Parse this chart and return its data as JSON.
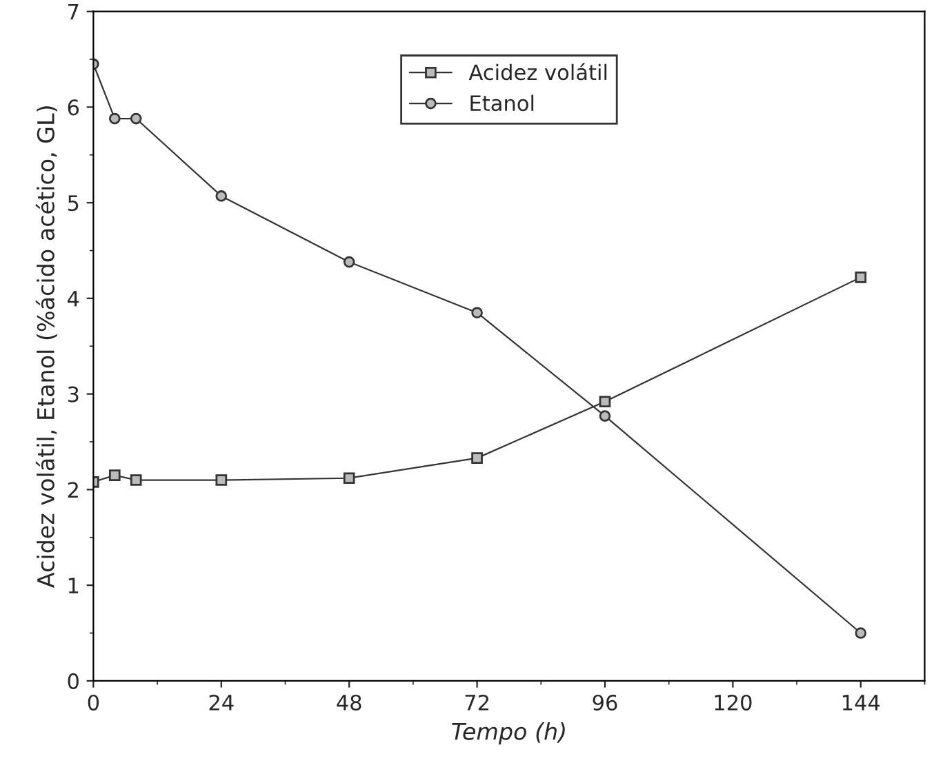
{
  "chart_data": {
    "type": "line",
    "xlabel": "Tempo (h)",
    "ylabel": "Acidez volátil, Etanol (%ácido acético, GL)",
    "xlim": [
      0,
      156
    ],
    "xticks": [
      0,
      24,
      48,
      72,
      96,
      120,
      144
    ],
    "ylim": [
      0,
      7
    ],
    "yticks": [
      0,
      1,
      2,
      3,
      4,
      5,
      6,
      7
    ],
    "grid": false,
    "legend": "top",
    "line_style": "solid",
    "series": [
      {
        "name": "Acidez volátil",
        "color": "#333333",
        "marker": "square",
        "x": [
          0,
          4,
          8,
          24,
          48,
          72,
          96,
          144
        ],
        "values": [
          2.08,
          2.15,
          2.1,
          2.1,
          2.12,
          2.33,
          2.92,
          4.22
        ]
      },
      {
        "name": "Etanol",
        "color": "#333333",
        "marker": "circle",
        "x": [
          0,
          4,
          8,
          24,
          48,
          72,
          96,
          144
        ],
        "values": [
          6.45,
          5.88,
          5.88,
          5.07,
          4.38,
          3.85,
          2.77,
          0.5
        ]
      }
    ]
  }
}
